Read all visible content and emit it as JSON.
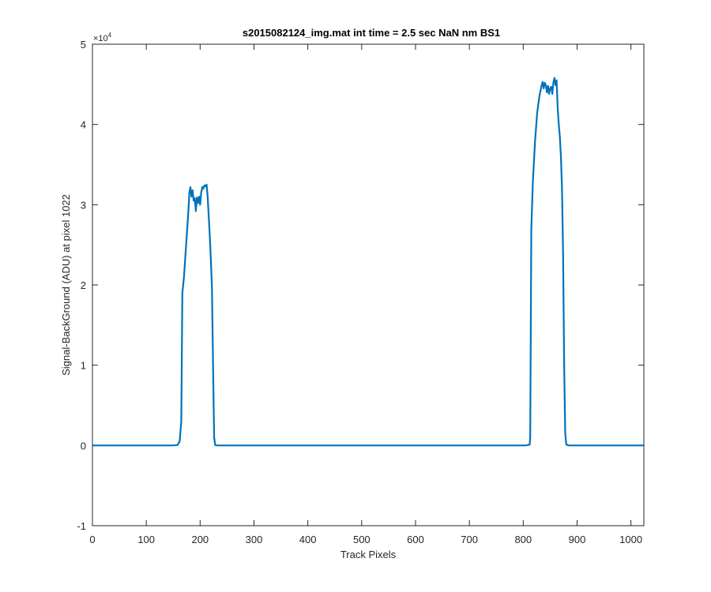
{
  "chart_data": {
    "type": "line",
    "title": "s2015082124_img.mat int time = 2.5 sec  NaN nm BS1",
    "xlabel": "Track Pixels",
    "ylabel": "Signal-BackGround (ADU) at pixel 1022",
    "y_exponent_base": "×10",
    "y_exponent_power": "4",
    "xlim": [
      0,
      1024
    ],
    "ylim": [
      -10000,
      50000
    ],
    "x_ticks": [
      0,
      100,
      200,
      300,
      400,
      500,
      600,
      700,
      800,
      900,
      1000
    ],
    "y_ticks": [
      -10000,
      0,
      10000,
      20000,
      30000,
      40000,
      50000
    ],
    "x_tick_labels": [
      "0",
      "100",
      "200",
      "300",
      "400",
      "500",
      "600",
      "700",
      "800",
      "900",
      "1000"
    ],
    "y_tick_labels": [
      "-1",
      "0",
      "1",
      "2",
      "3",
      "4",
      "5"
    ],
    "grid": false,
    "line_color": "#0072BD",
    "series": [
      {
        "x": [
          0,
          150,
          158,
          162,
          165,
          167,
          170,
          174,
          178,
          180,
          182,
          184,
          186,
          188,
          190,
          192,
          194,
          196,
          198,
          200,
          202,
          204,
          206,
          208,
          210,
          212,
          214,
          216,
          218,
          220,
          222,
          224,
          226,
          228,
          232,
          240,
          400,
          600,
          805,
          812,
          813,
          815,
          818,
          822,
          826,
          830,
          834,
          836,
          838,
          840,
          842,
          844,
          846,
          848,
          850,
          852,
          854,
          856,
          858,
          860,
          862,
          864,
          866,
          868,
          870,
          872,
          874,
          876,
          878,
          880,
          885,
          900,
          1024
        ],
        "y": [
          0,
          0,
          50,
          500,
          3000,
          19000,
          21000,
          25000,
          29000,
          31500,
          32200,
          31000,
          31800,
          30500,
          30800,
          29200,
          30900,
          30200,
          31000,
          30000,
          31500,
          32200,
          32000,
          32400,
          32300,
          32500,
          31000,
          28500,
          26000,
          23000,
          19500,
          10000,
          1000,
          50,
          0,
          0,
          0,
          0,
          0,
          100,
          1000,
          27000,
          33000,
          38000,
          41500,
          43500,
          44800,
          45300,
          44500,
          45200,
          44900,
          44000,
          44800,
          43800,
          44500,
          44700,
          43800,
          45200,
          45800,
          44900,
          45500,
          42000,
          40000,
          38500,
          36000,
          32000,
          24000,
          10000,
          1500,
          100,
          0,
          0,
          0
        ]
      }
    ]
  }
}
